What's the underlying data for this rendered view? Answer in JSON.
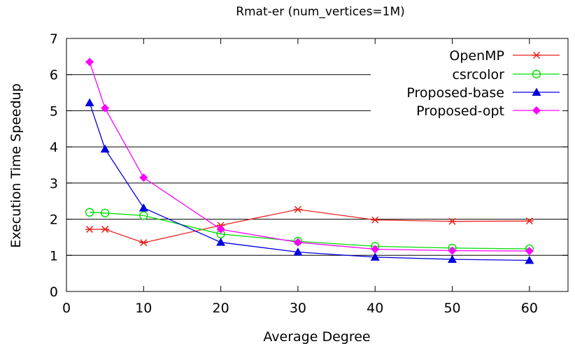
{
  "chart_data": {
    "type": "line",
    "title": "Rmat-er (num_vertices=1M)",
    "xlabel": "Average Degree",
    "ylabel": "Execution Time Speedup",
    "xlim": [
      0,
      65
    ],
    "ylim": [
      0,
      7
    ],
    "xticks": [
      0,
      10,
      20,
      30,
      40,
      50,
      60
    ],
    "yticks": [
      0,
      1,
      2,
      3,
      4,
      5,
      6,
      7
    ],
    "grid": "horizontal",
    "legend_position": "top-right",
    "x": [
      3,
      5,
      10,
      20,
      30,
      40,
      50,
      60
    ],
    "series": [
      {
        "name": "OpenMP",
        "color": "#e8221e",
        "marker": "asterisk",
        "values": [
          1.72,
          1.72,
          1.35,
          1.83,
          2.27,
          1.98,
          1.94,
          1.95
        ]
      },
      {
        "name": "csrcolor",
        "color": "#00dd00",
        "marker": "open-circle",
        "values": [
          2.19,
          2.17,
          2.1,
          1.59,
          1.39,
          1.25,
          1.2,
          1.18
        ]
      },
      {
        "name": "Proposed-base",
        "color": "#0000e0",
        "marker": "filled-triangle",
        "values": [
          5.22,
          3.94,
          2.31,
          1.36,
          1.09,
          0.95,
          0.89,
          0.86
        ]
      },
      {
        "name": "Proposed-opt",
        "color": "#ff00ff",
        "marker": "filled-diamond",
        "values": [
          6.35,
          5.07,
          3.15,
          1.72,
          1.36,
          1.17,
          1.13,
          1.12
        ]
      }
    ]
  }
}
